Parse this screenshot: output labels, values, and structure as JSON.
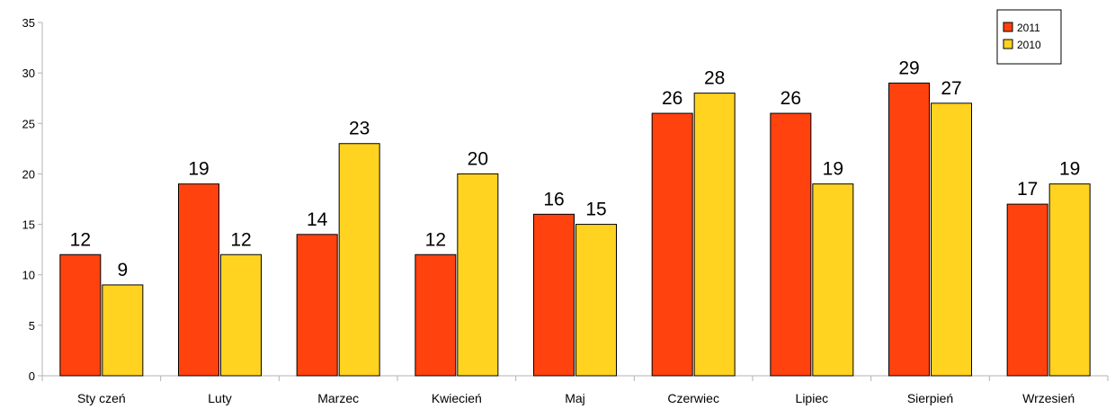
{
  "chart_data": {
    "type": "bar",
    "title": "",
    "xlabel": "",
    "ylabel": "",
    "ylim": [
      0,
      35
    ],
    "yticks": [
      0,
      5,
      10,
      15,
      20,
      25,
      30,
      35
    ],
    "grid": false,
    "legend_position": "top-right",
    "categories": [
      "Sty czeń",
      "Luty",
      "Marzec",
      "Kwiecień",
      "Maj",
      "Czerwiec",
      "Lipiec",
      "Sierpień",
      "Wrzesień"
    ],
    "series": [
      {
        "name": "2011",
        "color": "#ff420e",
        "values": [
          12,
          19,
          14,
          12,
          16,
          26,
          26,
          29,
          17
        ]
      },
      {
        "name": "2010",
        "color": "#ffd320",
        "values": [
          9,
          12,
          23,
          20,
          15,
          28,
          19,
          27,
          19
        ]
      }
    ]
  }
}
